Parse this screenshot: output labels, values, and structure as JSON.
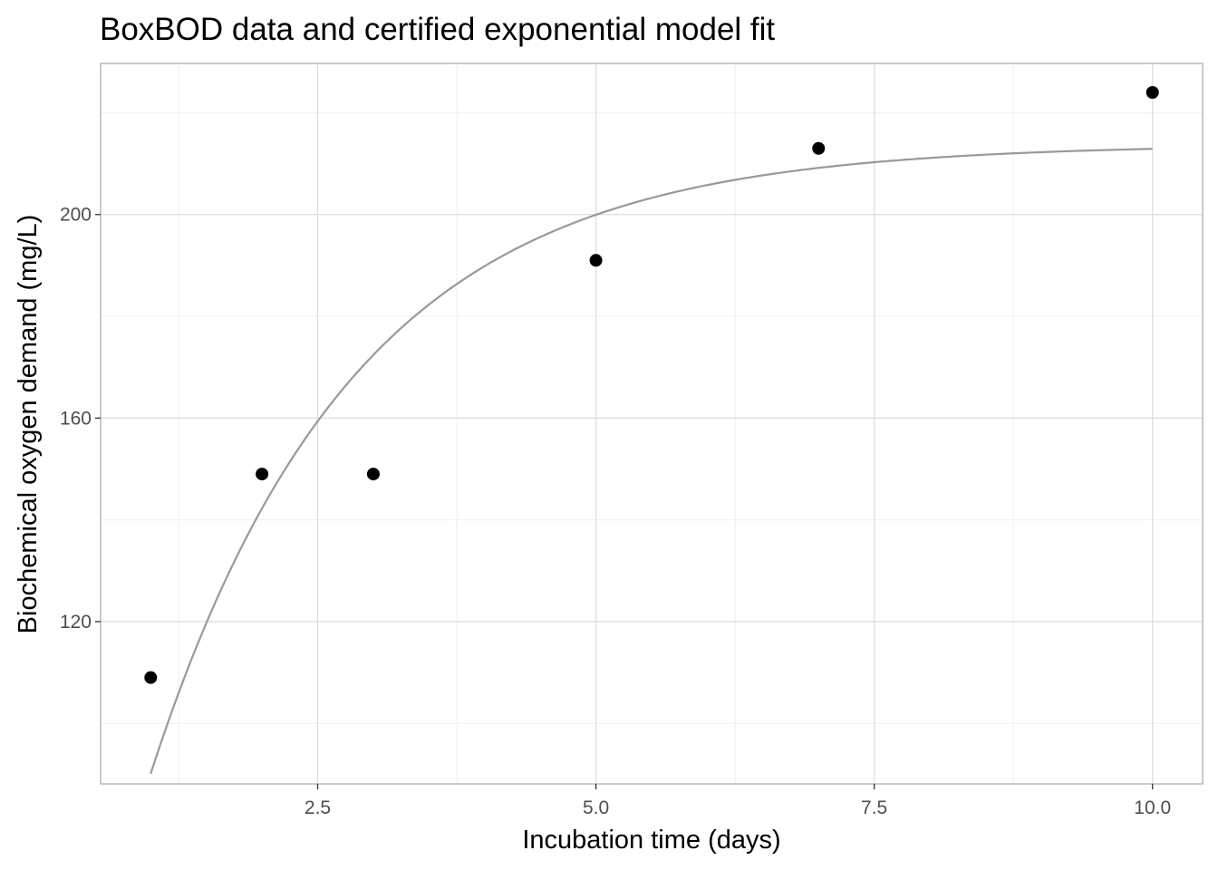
{
  "chart_data": {
    "type": "scatter",
    "title": "BoxBOD data and certified exponential model fit",
    "xlabel": "Incubation time (days)",
    "ylabel": "Biochemical oxygen demand (mg/L)",
    "xlim": [
      0.55,
      10.45
    ],
    "ylim": [
      88.1,
      229.7
    ],
    "xticks": [
      2.5,
      5.0,
      7.5,
      10.0
    ],
    "xtick_labels": [
      "2.5",
      "5.0",
      "7.5",
      "10.0"
    ],
    "yticks": [
      120,
      160,
      200
    ],
    "ytick_labels": [
      "120",
      "160",
      "200"
    ],
    "x_minor": [
      1.25,
      3.75,
      6.25,
      8.75
    ],
    "y_minor": [
      100,
      140,
      180,
      220
    ],
    "grid": true,
    "legend": "none",
    "points": {
      "x": [
        1,
        2,
        3,
        5,
        7,
        10
      ],
      "y": [
        109,
        149,
        149,
        191,
        213,
        224
      ],
      "color": "#000000"
    },
    "fit": {
      "model": "y = b1 * (1 - exp(-b2 * x))",
      "b1": 213.80940889,
      "b2": 0.54723748542,
      "x_range": [
        1,
        10
      ],
      "color": "#999999"
    },
    "colors": {
      "panel_border": "#b3b3b3",
      "grid_major": "#dedede",
      "grid_minor": "#efefef"
    }
  }
}
